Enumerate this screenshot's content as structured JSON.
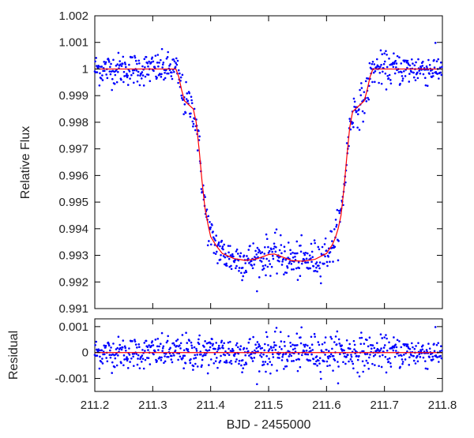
{
  "chart_data": [
    {
      "type": "scatter",
      "panel": "light-curve",
      "title": "",
      "xlabel": "",
      "ylabel": "Relative Flux",
      "xlim": [
        211.2,
        211.8
      ],
      "ylim": [
        0.991,
        1.002
      ],
      "x_ticks": [
        211.2,
        211.3,
        211.4,
        211.5,
        211.6,
        211.7,
        211.8
      ],
      "y_ticks": [
        0.991,
        0.992,
        0.993,
        0.994,
        0.995,
        0.996,
        0.997,
        0.998,
        0.999,
        1,
        1.001,
        1.002
      ],
      "y_tick_labels": [
        "0.991",
        "0.992",
        "0.993",
        "0.994",
        "0.995",
        "0.996",
        "0.997",
        "0.998",
        "0.999",
        "1",
        "1.001",
        "1.002"
      ],
      "grid": false,
      "point_color": "#0000ff",
      "model_color": "#ff0000",
      "model": {
        "x": [
          211.2,
          211.34,
          211.345,
          211.35,
          211.355,
          211.36,
          211.365,
          211.37,
          211.375,
          211.38,
          211.385,
          211.39,
          211.395,
          211.4,
          211.41,
          211.42,
          211.44,
          211.46,
          211.48,
          211.5,
          211.51,
          211.52,
          211.54,
          211.56,
          211.58,
          211.6,
          211.61,
          211.615,
          211.62,
          211.625,
          211.63,
          211.635,
          211.64,
          211.645,
          211.65,
          211.655,
          211.66,
          211.665,
          211.67,
          211.675,
          211.68,
          211.685,
          211.69,
          211.8
        ],
        "y": [
          1.0,
          1.0,
          0.9997,
          0.9992,
          0.9988,
          0.9987,
          0.9986,
          0.9985,
          0.998,
          0.997,
          0.9958,
          0.9948,
          0.9942,
          0.9937,
          0.99335,
          0.99307,
          0.99288,
          0.99281,
          0.99287,
          0.99303,
          0.99305,
          0.99297,
          0.9928,
          0.99278,
          0.99285,
          0.99307,
          0.9934,
          0.99365,
          0.994,
          0.9945,
          0.9955,
          0.9967,
          0.9978,
          0.9984,
          0.9985,
          0.9986,
          0.9987,
          0.9988,
          0.9992,
          0.9997,
          1.0,
          1.0,
          1.0,
          1.0
        ]
      },
      "observations": {
        "x_start": 211.2,
        "x_step": 0.0008,
        "count": 750,
        "scatter_sigma": 0.0003,
        "scatter_sigma_in_transit": 0.00035
      }
    },
    {
      "type": "scatter",
      "panel": "residuals",
      "title": "",
      "xlabel": "BJD - 2455000",
      "ylabel": "Residual",
      "xlim": [
        211.2,
        211.8
      ],
      "ylim": [
        -0.0015,
        0.0013
      ],
      "x_ticks": [
        211.2,
        211.3,
        211.4,
        211.5,
        211.6,
        211.7,
        211.8
      ],
      "x_tick_labels": [
        "211.2",
        "211.3",
        "211.4",
        "211.5",
        "211.6",
        "211.7",
        "211.8"
      ],
      "y_ticks": [
        0.001,
        0,
        -0.001
      ],
      "y_tick_labels": [
        "0.001",
        "0",
        "-0.001"
      ],
      "grid": false,
      "point_color": "#0000ff",
      "zero_line_color": "#ff0000",
      "zero_line": 0
    }
  ]
}
